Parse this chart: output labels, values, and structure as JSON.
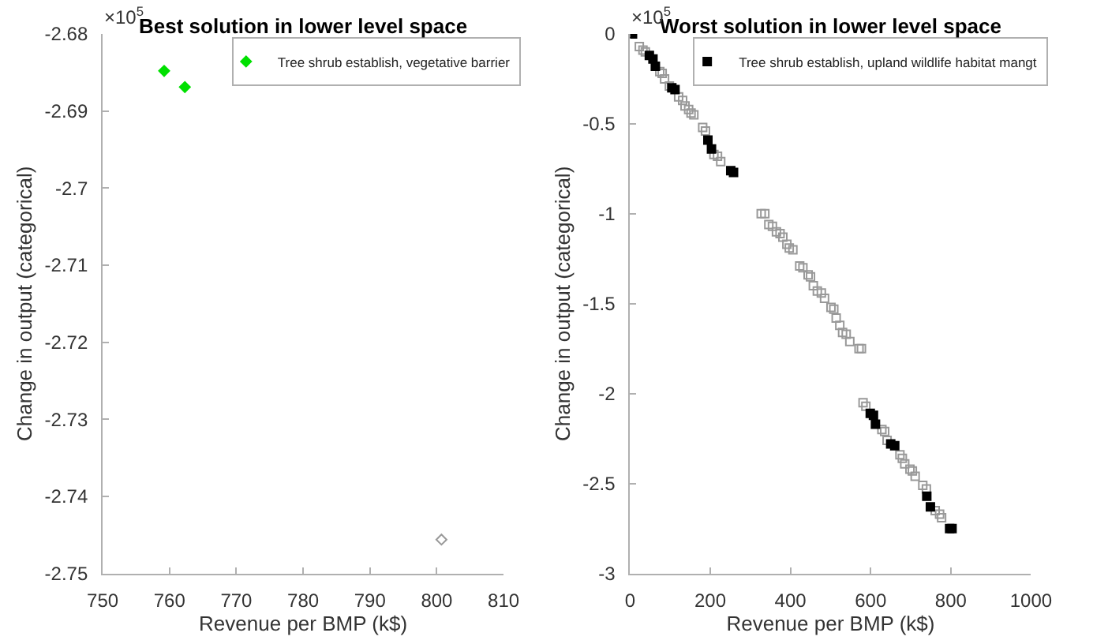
{
  "chart_data": [
    {
      "type": "scatter",
      "title": "Best solution in lower level space",
      "xlabel": "Revenue per BMP (k$)",
      "ylabel": "Change in output (categorical)",
      "annotations": [
        "×10$^{5}$"
      ],
      "xlim": [
        750,
        810
      ],
      "xticks": [
        750,
        760,
        770,
        780,
        790,
        800,
        810
      ],
      "ylim": [
        -2.75,
        -2.68
      ],
      "yticks": [
        -2.75,
        -2.74,
        -2.73,
        -2.72,
        -2.71,
        -2.7,
        -2.69,
        -2.68
      ],
      "legend": "top right",
      "marker": "diamond",
      "series": [
        {
          "name": "Tree shrub establish, vegetative barrier",
          "color": "#00e000",
          "x": [
            759.2,
            762.3
          ],
          "values": [
            -2.6848,
            -2.6869
          ]
        },
        {
          "color": "#999999",
          "x": [
            800.7
          ],
          "values": [
            -2.7456
          ]
        }
      ]
    },
    {
      "type": "scatter",
      "title": "Worst solution in lower level space",
      "xlabel": "Revenue per BMP (k$)",
      "ylabel": "Change in output (categorical)",
      "annotations": [
        "×10$^{5}$"
      ],
      "xlim": [
        0,
        1000
      ],
      "xticks": [
        0,
        200,
        400,
        600,
        800,
        1000
      ],
      "ylim": [
        -3,
        0
      ],
      "yticks": [
        -3,
        -2.5,
        -2,
        -1.5,
        -1,
        -0.5,
        0
      ],
      "legend": "top right",
      "marker": "square",
      "series": [
        {
          "color": "#999999",
          "x": [
            23,
            32,
            38,
            74,
            80,
            86,
            98,
            121,
            131,
            137,
            146,
            152,
            159,
            181,
            188,
            209,
            218,
            226,
            327,
            336,
            346,
            355,
            365,
            374,
            381,
            391,
            397,
            406,
            423,
            431,
            444,
            450,
            457,
            467,
            477,
            485,
            501,
            508,
            514,
            523,
            530,
            539,
            548,
            571,
            577,
            581,
            588,
            628,
            635,
            641,
            673,
            679,
            685,
            698,
            704,
            711,
            730,
            739,
            761,
            772,
            777
          ],
          "values": [
            -0.07,
            -0.09,
            -0.1,
            -0.21,
            -0.22,
            -0.25,
            -0.29,
            -0.35,
            -0.37,
            -0.4,
            -0.42,
            -0.44,
            -0.45,
            -0.52,
            -0.54,
            -0.67,
            -0.68,
            -0.71,
            -1.0,
            -1.0,
            -1.06,
            -1.07,
            -1.1,
            -1.11,
            -1.13,
            -1.17,
            -1.19,
            -1.2,
            -1.29,
            -1.3,
            -1.34,
            -1.35,
            -1.4,
            -1.43,
            -1.44,
            -1.47,
            -1.52,
            -1.53,
            -1.58,
            -1.62,
            -1.66,
            -1.67,
            -1.71,
            -1.75,
            -1.75,
            -2.05,
            -2.07,
            -2.2,
            -2.21,
            -2.26,
            -2.34,
            -2.36,
            -2.39,
            -2.42,
            -2.43,
            -2.46,
            -2.51,
            -2.53,
            -2.65,
            -2.67,
            -2.69
          ]
        },
        {
          "name": "Tree shrub establish, upland wildlife habitat mangt",
          "color": "#000000",
          "x": [
            6,
            48,
            57,
            63,
            104,
            112,
            194,
            203,
            251,
            258,
            599,
            607,
            612,
            650,
            660,
            740,
            749,
            797,
            803
          ],
          "values": [
            0,
            -0.12,
            -0.14,
            -0.18,
            -0.3,
            -0.31,
            -0.59,
            -0.64,
            -0.76,
            -0.77,
            -2.11,
            -2.12,
            -2.17,
            -2.28,
            -2.29,
            -2.57,
            -2.63,
            -2.75,
            -2.75
          ]
        }
      ]
    }
  ]
}
